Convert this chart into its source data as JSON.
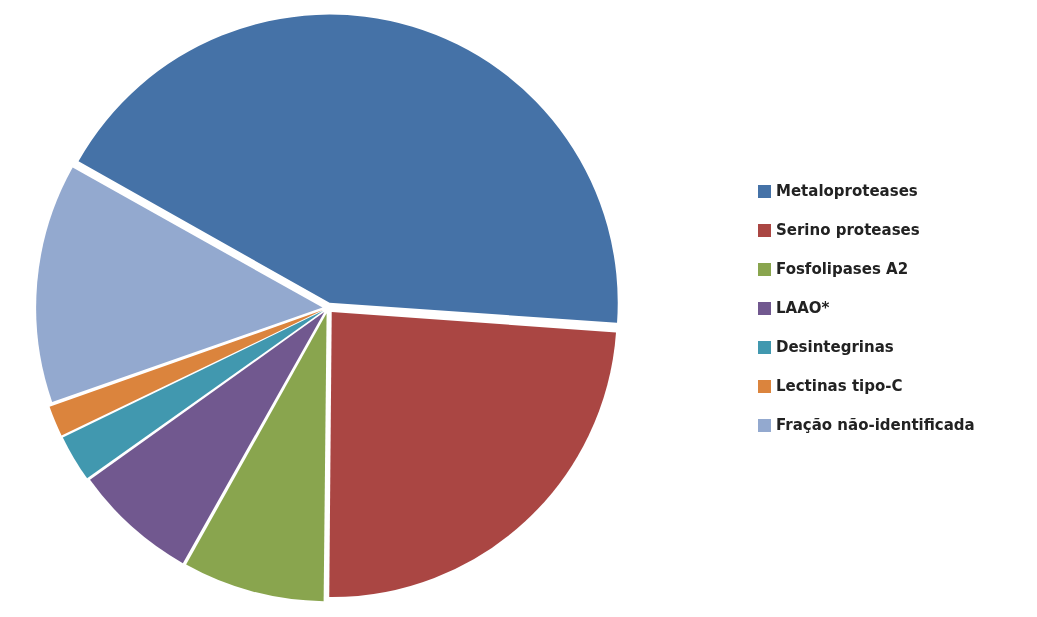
{
  "chart_data": {
    "type": "pie",
    "categories": [
      "Metaloproteases",
      "Serino proteases",
      "Fosfolipases A2",
      "LAAO*",
      "Desintegrinas",
      "Lectinas tipo-C",
      "Fração não-identificada"
    ],
    "values": [
      43,
      24,
      8,
      7,
      2.7,
      1.8,
      13.5
    ],
    "colors": [
      "#4572a7",
      "#aa4643",
      "#89a54e",
      "#71588f",
      "#4198af",
      "#db843d",
      "#93a9cf"
    ],
    "legend": "right"
  }
}
